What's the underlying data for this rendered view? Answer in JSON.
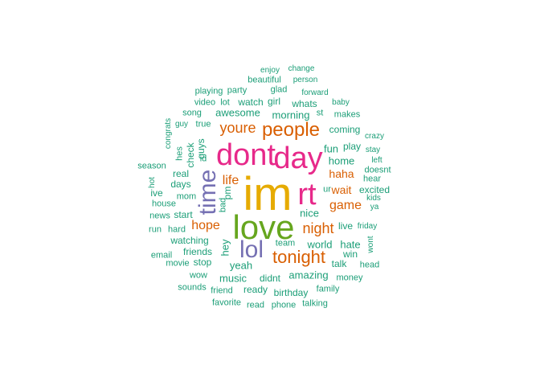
{
  "palette": {
    "green": "#1b9e77",
    "orange": "#d95f02",
    "purple": "#7570b3",
    "pink": "#e7298a",
    "lime": "#66a61e",
    "gold": "#e6ab02"
  },
  "words": [
    {
      "text": "im",
      "c": "gold",
      "s": 58
    },
    {
      "text": "love",
      "c": "lime",
      "s": 42
    },
    {
      "text": "dont",
      "c": "pink",
      "s": 38
    },
    {
      "text": "day",
      "c": "pink",
      "s": 38
    },
    {
      "text": "rt",
      "c": "pink",
      "s": 38
    },
    {
      "text": "time",
      "c": "purple",
      "s": 30,
      "v": true
    },
    {
      "text": "lol",
      "c": "purple",
      "s": 30
    },
    {
      "text": "people",
      "c": "orange",
      "s": 24
    },
    {
      "text": "tonight",
      "c": "orange",
      "s": 22
    },
    {
      "text": "youre",
      "c": "orange",
      "s": 18
    },
    {
      "text": "night",
      "c": "orange",
      "s": 18
    },
    {
      "text": "hope",
      "c": "orange",
      "s": 16
    },
    {
      "text": "life",
      "c": "orange",
      "s": 16
    },
    {
      "text": "game",
      "c": "orange",
      "s": 16
    },
    {
      "text": "haha",
      "c": "orange",
      "s": 14
    },
    {
      "text": "wait",
      "c": "orange",
      "s": 14
    },
    {
      "text": "awesome",
      "c": "green",
      "s": 13
    },
    {
      "text": "morning",
      "c": "green",
      "s": 13
    },
    {
      "text": "home",
      "c": "green",
      "s": 13
    },
    {
      "text": "fun",
      "c": "green",
      "s": 13
    },
    {
      "text": "play",
      "c": "green",
      "s": 12
    },
    {
      "text": "coming",
      "c": "green",
      "s": 12
    },
    {
      "text": "whats",
      "c": "green",
      "s": 12
    },
    {
      "text": "watch",
      "c": "green",
      "s": 12
    },
    {
      "text": "girl",
      "c": "green",
      "s": 12
    },
    {
      "text": "glad",
      "c": "green",
      "s": 11
    },
    {
      "text": "party",
      "c": "green",
      "s": 11
    },
    {
      "text": "playing",
      "c": "green",
      "s": 11
    },
    {
      "text": "beautiful",
      "c": "green",
      "s": 11
    },
    {
      "text": "enjoy",
      "c": "green",
      "s": 10
    },
    {
      "text": "change",
      "c": "green",
      "s": 10
    },
    {
      "text": "person",
      "c": "green",
      "s": 10
    },
    {
      "text": "forward",
      "c": "green",
      "s": 10
    },
    {
      "text": "baby",
      "c": "green",
      "s": 10
    },
    {
      "text": "makes",
      "c": "green",
      "s": 11
    },
    {
      "text": "st",
      "c": "green",
      "s": 11
    },
    {
      "text": "video",
      "c": "green",
      "s": 11
    },
    {
      "text": "lot",
      "c": "green",
      "s": 11
    },
    {
      "text": "song",
      "c": "green",
      "s": 11
    },
    {
      "text": "guy",
      "c": "green",
      "s": 10
    },
    {
      "text": "true",
      "c": "green",
      "s": 11
    },
    {
      "text": "congrats",
      "c": "green",
      "s": 10,
      "v": true
    },
    {
      "text": "hes",
      "c": "green",
      "s": 11,
      "v": true
    },
    {
      "text": "check",
      "c": "green",
      "s": 12,
      "v": true
    },
    {
      "text": "guys",
      "c": "green",
      "s": 12,
      "v": true
    },
    {
      "text": "id",
      "c": "green",
      "s": 11
    },
    {
      "text": "crazy",
      "c": "green",
      "s": 10
    },
    {
      "text": "stay",
      "c": "green",
      "s": 10
    },
    {
      "text": "left",
      "c": "green",
      "s": 10
    },
    {
      "text": "doesnt",
      "c": "green",
      "s": 11
    },
    {
      "text": "hear",
      "c": "green",
      "s": 11
    },
    {
      "text": "excited",
      "c": "green",
      "s": 12
    },
    {
      "text": "kids",
      "c": "green",
      "s": 10
    },
    {
      "text": "ya",
      "c": "green",
      "s": 10
    },
    {
      "text": "ur",
      "c": "green",
      "s": 11
    },
    {
      "text": "season",
      "c": "green",
      "s": 11
    },
    {
      "text": "real",
      "c": "green",
      "s": 12
    },
    {
      "text": "days",
      "c": "green",
      "s": 12
    },
    {
      "text": "hot",
      "c": "green",
      "s": 10,
      "v": true
    },
    {
      "text": "mom",
      "c": "green",
      "s": 11
    },
    {
      "text": "pm",
      "c": "green",
      "s": 12,
      "v": true
    },
    {
      "text": "ive",
      "c": "green",
      "s": 12
    },
    {
      "text": "bad",
      "c": "green",
      "s": 11,
      "v": true
    },
    {
      "text": "house",
      "c": "green",
      "s": 11
    },
    {
      "text": "news",
      "c": "green",
      "s": 11
    },
    {
      "text": "start",
      "c": "green",
      "s": 12
    },
    {
      "text": "nice",
      "c": "green",
      "s": 13
    },
    {
      "text": "live",
      "c": "green",
      "s": 12
    },
    {
      "text": "friday",
      "c": "green",
      "s": 10
    },
    {
      "text": "run",
      "c": "green",
      "s": 11
    },
    {
      "text": "hard",
      "c": "green",
      "s": 11
    },
    {
      "text": "watching",
      "c": "green",
      "s": 12
    },
    {
      "text": "hey",
      "c": "green",
      "s": 13,
      "v": true
    },
    {
      "text": "world",
      "c": "green",
      "s": 13
    },
    {
      "text": "hate",
      "c": "green",
      "s": 13
    },
    {
      "text": "wont",
      "c": "green",
      "s": 10,
      "v": true
    },
    {
      "text": "team",
      "c": "green",
      "s": 11
    },
    {
      "text": "friends",
      "c": "green",
      "s": 12
    },
    {
      "text": "win",
      "c": "green",
      "s": 12
    },
    {
      "text": "email",
      "c": "green",
      "s": 11
    },
    {
      "text": "movie",
      "c": "green",
      "s": 11
    },
    {
      "text": "stop",
      "c": "green",
      "s": 12
    },
    {
      "text": "talk",
      "c": "green",
      "s": 12
    },
    {
      "text": "head",
      "c": "green",
      "s": 11
    },
    {
      "text": "yeah",
      "c": "green",
      "s": 13
    },
    {
      "text": "wow",
      "c": "green",
      "s": 11
    },
    {
      "text": "music",
      "c": "green",
      "s": 13
    },
    {
      "text": "didnt",
      "c": "green",
      "s": 12
    },
    {
      "text": "amazing",
      "c": "green",
      "s": 13
    },
    {
      "text": "money",
      "c": "green",
      "s": 11
    },
    {
      "text": "sounds",
      "c": "green",
      "s": 11
    },
    {
      "text": "friend",
      "c": "green",
      "s": 11
    },
    {
      "text": "ready",
      "c": "green",
      "s": 12
    },
    {
      "text": "birthday",
      "c": "green",
      "s": 12
    },
    {
      "text": "family",
      "c": "green",
      "s": 11
    },
    {
      "text": "favorite",
      "c": "green",
      "s": 11
    },
    {
      "text": "read",
      "c": "green",
      "s": 11
    },
    {
      "text": "phone",
      "c": "green",
      "s": 11
    },
    {
      "text": "talking",
      "c": "green",
      "s": 11
    }
  ]
}
